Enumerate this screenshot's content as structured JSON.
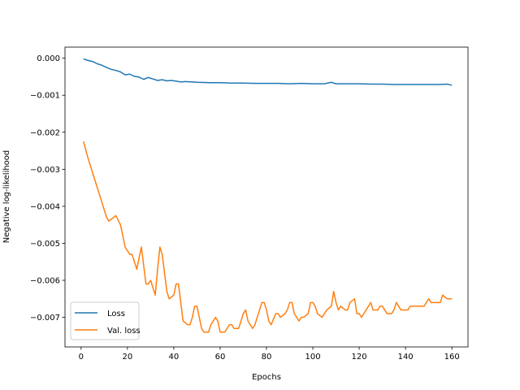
{
  "chart_data": {
    "type": "line",
    "xlabel": "Epochs",
    "ylabel": "Negative log-likelihood",
    "xlim": [
      -6.95,
      166.95
    ],
    "ylim": [
      -0.0078,
      0.0003
    ],
    "x_ticks": [
      0,
      20,
      40,
      60,
      80,
      100,
      120,
      140,
      160
    ],
    "x_tick_labels": [
      "0",
      "20",
      "40",
      "60",
      "80",
      "100",
      "120",
      "140",
      "160"
    ],
    "y_ticks": [
      0.0,
      -0.001,
      -0.002,
      -0.003,
      -0.004,
      -0.005,
      -0.006,
      -0.007
    ],
    "y_tick_labels": [
      "0.000",
      "−0.001",
      "−0.002",
      "−0.003",
      "−0.004",
      "−0.005",
      "−0.006",
      "−0.007"
    ],
    "grid": false,
    "legend_position": "lower-left",
    "series": [
      {
        "name": "Loss",
        "color": "#1f77b4",
        "x": [
          1,
          3,
          5,
          7,
          9,
          11,
          13,
          15,
          17,
          19,
          21,
          23,
          25,
          27,
          29,
          31,
          33,
          35,
          37,
          39,
          41,
          43,
          45,
          50,
          55,
          60,
          65,
          70,
          75,
          80,
          85,
          90,
          95,
          100,
          105,
          108,
          110,
          115,
          120,
          125,
          130,
          135,
          140,
          145,
          150,
          155,
          158,
          160
        ],
        "y": [
          -2e-05,
          -6e-05,
          -9e-05,
          -0.00015,
          -0.00019,
          -0.00025,
          -0.0003,
          -0.00033,
          -0.00037,
          -0.00045,
          -0.00043,
          -0.00049,
          -0.00051,
          -0.00057,
          -0.00052,
          -0.00056,
          -0.0006,
          -0.00058,
          -0.00061,
          -0.0006,
          -0.00062,
          -0.00064,
          -0.00063,
          -0.00065,
          -0.00066,
          -0.00066,
          -0.00067,
          -0.00067,
          -0.00068,
          -0.00068,
          -0.00068,
          -0.00069,
          -0.00068,
          -0.00069,
          -0.00069,
          -0.00065,
          -0.00069,
          -0.00069,
          -0.00069,
          -0.0007,
          -0.0007,
          -0.00071,
          -0.00071,
          -0.00071,
          -0.00071,
          -0.00071,
          -0.0007,
          -0.00073
        ]
      },
      {
        "name": "Val. loss",
        "color": "#ff7f0e",
        "x": [
          1,
          3,
          5,
          7,
          9,
          11,
          12,
          14,
          15,
          17,
          18,
          19,
          21,
          22,
          24,
          25,
          26,
          28,
          29,
          30,
          32,
          33,
          34,
          35,
          36,
          37,
          38,
          40,
          41,
          42,
          43,
          44,
          46,
          47,
          48,
          49,
          50,
          52,
          53,
          54,
          55,
          56,
          58,
          59,
          60,
          62,
          63,
          64,
          65,
          66,
          68,
          69,
          70,
          71,
          72,
          74,
          75,
          76,
          78,
          79,
          80,
          81,
          82,
          84,
          85,
          86,
          88,
          89,
          90,
          91,
          92,
          94,
          95,
          96,
          98,
          99,
          100,
          101,
          102,
          104,
          105,
          106,
          108,
          109,
          110,
          111,
          112,
          114,
          115,
          116,
          118,
          119,
          120,
          121,
          122,
          124,
          125,
          126,
          128,
          129,
          130,
          131,
          132,
          134,
          135,
          136,
          138,
          139,
          140,
          141,
          142,
          144,
          145,
          146,
          148,
          149,
          150,
          151,
          152,
          154,
          155,
          156,
          158,
          159,
          160
        ],
        "y": [
          -0.00225,
          -0.0027,
          -0.0031,
          -0.0035,
          -0.0039,
          -0.0043,
          -0.0044,
          -0.0043,
          -0.00425,
          -0.0045,
          -0.0048,
          -0.0051,
          -0.0053,
          -0.0053,
          -0.0057,
          -0.0054,
          -0.0051,
          -0.0061,
          -0.0061,
          -0.006,
          -0.0064,
          -0.0057,
          -0.0051,
          -0.0053,
          -0.0058,
          -0.0063,
          -0.0065,
          -0.0064,
          -0.0061,
          -0.0061,
          -0.0066,
          -0.0071,
          -0.0072,
          -0.0072,
          -0.007,
          -0.0067,
          -0.0067,
          -0.0073,
          -0.0074,
          -0.0074,
          -0.0074,
          -0.0072,
          -0.007,
          -0.0071,
          -0.0074,
          -0.0074,
          -0.0073,
          -0.0072,
          -0.0072,
          -0.0073,
          -0.0073,
          -0.0071,
          -0.0069,
          -0.0068,
          -0.0071,
          -0.0073,
          -0.0072,
          -0.007,
          -0.0066,
          -0.0066,
          -0.0068,
          -0.0071,
          -0.0072,
          -0.0069,
          -0.0069,
          -0.007,
          -0.0069,
          -0.0068,
          -0.0066,
          -0.0066,
          -0.0069,
          -0.0071,
          -0.007,
          -0.007,
          -0.0069,
          -0.0066,
          -0.0066,
          -0.0067,
          -0.0069,
          -0.007,
          -0.0069,
          -0.0068,
          -0.0067,
          -0.0063,
          -0.0066,
          -0.0068,
          -0.0067,
          -0.0068,
          -0.0068,
          -0.0066,
          -0.0065,
          -0.0069,
          -0.0069,
          -0.007,
          -0.0069,
          -0.0067,
          -0.0066,
          -0.0068,
          -0.0068,
          -0.0067,
          -0.0067,
          -0.0068,
          -0.0069,
          -0.0069,
          -0.0068,
          -0.0066,
          -0.0068,
          -0.0068,
          -0.0068,
          -0.0068,
          -0.0067,
          -0.0067,
          -0.0067,
          -0.0067,
          -0.0067,
          -0.0066,
          -0.0065,
          -0.0066,
          -0.0066,
          -0.0066,
          -0.0066,
          -0.0064,
          -0.0065,
          -0.0065,
          -0.0065
        ]
      }
    ]
  }
}
